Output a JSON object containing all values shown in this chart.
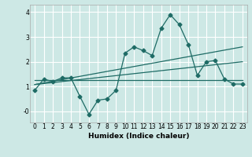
{
  "title": "",
  "xlabel": "Humidex (Indice chaleur)",
  "bg_color": "#cde8e5",
  "line_color": "#1e6b65",
  "grid_color": "#ffffff",
  "xlim": [
    -0.5,
    23.5
  ],
  "ylim": [
    -0.45,
    4.3
  ],
  "xticks": [
    0,
    1,
    2,
    3,
    4,
    5,
    6,
    7,
    8,
    9,
    10,
    11,
    12,
    13,
    14,
    15,
    16,
    17,
    18,
    19,
    20,
    21,
    22,
    23
  ],
  "yticks": [
    0,
    1,
    2,
    3,
    4
  ],
  "ytick_labels": [
    "-0",
    "1",
    "2",
    "3",
    "4"
  ],
  "line1_x": [
    0,
    1,
    2,
    3,
    4,
    5,
    6,
    7,
    8,
    9,
    10,
    11,
    12,
    13,
    14,
    15,
    16,
    17,
    18,
    19,
    20,
    21,
    22,
    23
  ],
  "line1_y": [
    0.85,
    1.3,
    1.2,
    1.35,
    1.35,
    0.6,
    -0.12,
    0.45,
    0.5,
    0.85,
    2.35,
    2.6,
    2.45,
    2.25,
    3.35,
    3.9,
    3.5,
    2.7,
    1.45,
    2.0,
    2.05,
    1.3,
    1.1,
    1.1
  ],
  "line2_x": [
    0,
    23
  ],
  "line2_y": [
    1.25,
    1.25
  ],
  "line3_x": [
    0,
    23
  ],
  "line3_y": [
    1.08,
    2.0
  ],
  "line4_x": [
    0,
    23
  ],
  "line4_y": [
    1.08,
    2.6
  ],
  "markersize": 2.5,
  "linewidth": 0.9
}
